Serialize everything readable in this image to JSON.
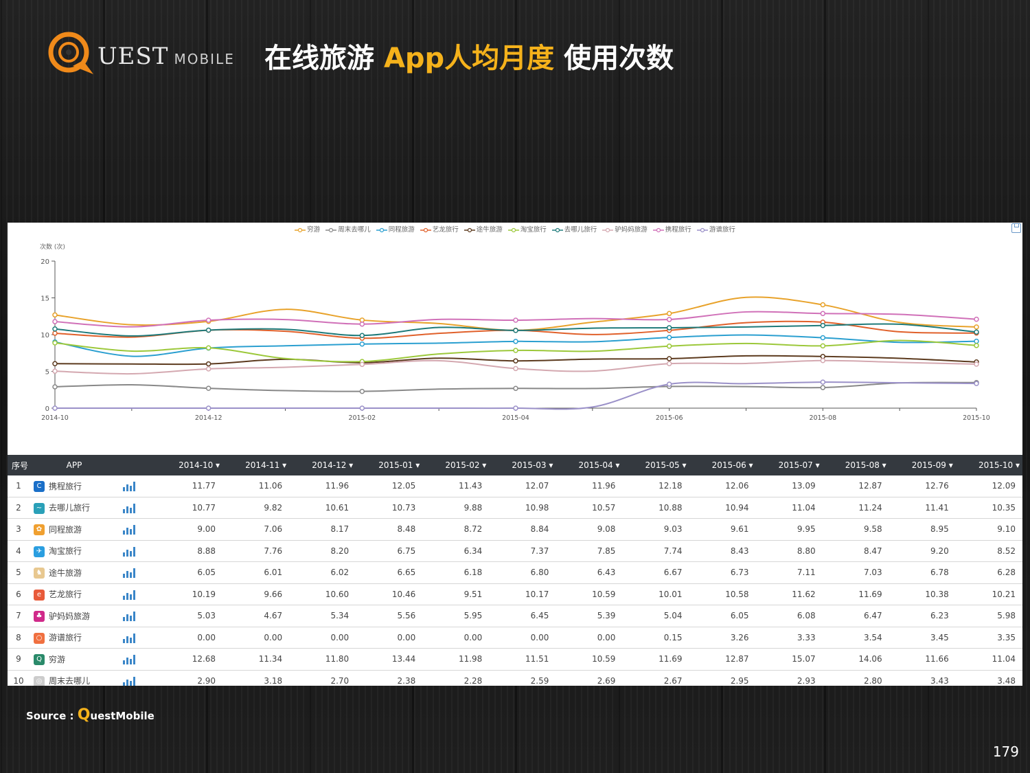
{
  "logo": {
    "text_main": "UEST",
    "text_sub": "MOBILE"
  },
  "title": {
    "part1": "在线旅游 ",
    "highlight": "App人均月度",
    "part2": " 使用次数"
  },
  "chart_data": {
    "type": "line",
    "ylabel": "次数 (次)",
    "ylim": [
      0,
      20
    ],
    "yticks": [
      0,
      5,
      10,
      15,
      20
    ],
    "x": [
      "2014-10",
      "2014-11",
      "2014-12",
      "2015-01",
      "2015-02",
      "2015-03",
      "2015-04",
      "2015-05",
      "2015-06",
      "2015-07",
      "2015-08",
      "2015-09",
      "2015-10"
    ],
    "xtick_labels": [
      "2014-10",
      "2014-12",
      "2015-02",
      "2015-04",
      "2015-06",
      "2015-08",
      "2015-10"
    ],
    "grid": false,
    "legend_position": "top",
    "series": [
      {
        "name": "穷游",
        "color": "#e8a22a",
        "values": [
          12.68,
          11.34,
          11.8,
          13.44,
          11.98,
          11.51,
          10.59,
          11.69,
          12.87,
          15.07,
          14.06,
          11.66,
          11.04
        ]
      },
      {
        "name": "周末去哪儿",
        "color": "#888888",
        "values": [
          2.9,
          3.18,
          2.7,
          2.38,
          2.28,
          2.59,
          2.69,
          2.67,
          2.95,
          2.93,
          2.8,
          3.43,
          3.48
        ]
      },
      {
        "name": "同程旅游",
        "color": "#2a9fd0",
        "values": [
          9.0,
          7.06,
          8.17,
          8.48,
          8.72,
          8.84,
          9.08,
          9.03,
          9.61,
          9.95,
          9.58,
          8.95,
          9.1
        ]
      },
      {
        "name": "艺龙旅行",
        "color": "#e0602a",
        "values": [
          10.19,
          9.66,
          10.6,
          10.46,
          9.51,
          10.17,
          10.59,
          10.01,
          10.58,
          11.62,
          11.69,
          10.38,
          10.21
        ]
      },
      {
        "name": "途牛旅游",
        "color": "#5c3a1e",
        "values": [
          6.05,
          6.01,
          6.02,
          6.65,
          6.18,
          6.8,
          6.43,
          6.67,
          6.73,
          7.11,
          7.03,
          6.78,
          6.28
        ]
      },
      {
        "name": "淘宝旅行",
        "color": "#9cc83a",
        "values": [
          8.88,
          7.76,
          8.2,
          6.75,
          6.34,
          7.37,
          7.85,
          7.74,
          8.43,
          8.8,
          8.47,
          9.2,
          8.52
        ]
      },
      {
        "name": "去哪儿旅行",
        "color": "#1e7a7a",
        "values": [
          10.77,
          9.82,
          10.61,
          10.73,
          9.88,
          10.98,
          10.57,
          10.88,
          10.94,
          11.04,
          11.24,
          11.41,
          10.35
        ]
      },
      {
        "name": "驴妈妈旅游",
        "color": "#d4a8b0",
        "values": [
          5.03,
          4.67,
          5.34,
          5.56,
          5.95,
          6.45,
          5.39,
          5.04,
          6.05,
          6.08,
          6.47,
          6.23,
          5.98
        ]
      },
      {
        "name": "携程旅行",
        "color": "#d070b8",
        "values": [
          11.77,
          11.06,
          11.96,
          12.05,
          11.43,
          12.07,
          11.96,
          12.18,
          12.06,
          13.09,
          12.87,
          12.76,
          12.09
        ]
      },
      {
        "name": "游谱旅行",
        "color": "#9a90c8",
        "values": [
          0.0,
          0.0,
          0.0,
          0.0,
          0.0,
          0.0,
          0.0,
          0.15,
          3.26,
          3.33,
          3.54,
          3.45,
          3.35
        ]
      }
    ]
  },
  "table": {
    "headers": {
      "idx": "序号",
      "app": "APP",
      "months": [
        "2014-10 ▾",
        "2014-11 ▾",
        "2014-12 ▾",
        "2015-01 ▾",
        "2015-02 ▾",
        "2015-03 ▾",
        "2015-04 ▾",
        "2015-05 ▾",
        "2015-06 ▾",
        "2015-07 ▾",
        "2015-08 ▾",
        "2015-09 ▾",
        "2015-10 ▾"
      ]
    },
    "rows": [
      {
        "idx": "1",
        "app": "携程旅行",
        "icon_color": "#1a6fc8",
        "icon": "C",
        "values": [
          "11.77",
          "11.06",
          "11.96",
          "12.05",
          "11.43",
          "12.07",
          "11.96",
          "12.18",
          "12.06",
          "13.09",
          "12.87",
          "12.76",
          "12.09"
        ]
      },
      {
        "idx": "2",
        "app": "去哪儿旅行",
        "icon_color": "#2aa0b8",
        "icon": "~",
        "values": [
          "10.77",
          "9.82",
          "10.61",
          "10.73",
          "9.88",
          "10.98",
          "10.57",
          "10.88",
          "10.94",
          "11.04",
          "11.24",
          "11.41",
          "10.35"
        ]
      },
      {
        "idx": "3",
        "app": "同程旅游",
        "icon_color": "#f0a030",
        "icon": "✿",
        "values": [
          "9.00",
          "7.06",
          "8.17",
          "8.48",
          "8.72",
          "8.84",
          "9.08",
          "9.03",
          "9.61",
          "9.95",
          "9.58",
          "8.95",
          "9.10"
        ]
      },
      {
        "idx": "4",
        "app": "淘宝旅行",
        "icon_color": "#2a9ee0",
        "icon": "✈",
        "values": [
          "8.88",
          "7.76",
          "8.20",
          "6.75",
          "6.34",
          "7.37",
          "7.85",
          "7.74",
          "8.43",
          "8.80",
          "8.47",
          "9.20",
          "8.52"
        ]
      },
      {
        "idx": "5",
        "app": "途牛旅游",
        "icon_color": "#e8c890",
        "icon": "♞",
        "values": [
          "6.05",
          "6.01",
          "6.02",
          "6.65",
          "6.18",
          "6.80",
          "6.43",
          "6.67",
          "6.73",
          "7.11",
          "7.03",
          "6.78",
          "6.28"
        ]
      },
      {
        "idx": "6",
        "app": "艺龙旅行",
        "icon_color": "#e85a3a",
        "icon": "e",
        "values": [
          "10.19",
          "9.66",
          "10.60",
          "10.46",
          "9.51",
          "10.17",
          "10.59",
          "10.01",
          "10.58",
          "11.62",
          "11.69",
          "10.38",
          "10.21"
        ]
      },
      {
        "idx": "7",
        "app": "驴妈妈旅游",
        "icon_color": "#d02a8a",
        "icon": "♣",
        "values": [
          "5.03",
          "4.67",
          "5.34",
          "5.56",
          "5.95",
          "6.45",
          "5.39",
          "5.04",
          "6.05",
          "6.08",
          "6.47",
          "6.23",
          "5.98"
        ]
      },
      {
        "idx": "8",
        "app": "游谱旅行",
        "icon_color": "#f07040",
        "icon": "○",
        "values": [
          "0.00",
          "0.00",
          "0.00",
          "0.00",
          "0.00",
          "0.00",
          "0.00",
          "0.15",
          "3.26",
          "3.33",
          "3.54",
          "3.45",
          "3.35"
        ]
      },
      {
        "idx": "9",
        "app": "穷游",
        "icon_color": "#2a8a6a",
        "icon": "Q",
        "values": [
          "12.68",
          "11.34",
          "11.80",
          "13.44",
          "11.98",
          "11.51",
          "10.59",
          "11.69",
          "12.87",
          "15.07",
          "14.06",
          "11.66",
          "11.04"
        ]
      },
      {
        "idx": "10",
        "app": "周末去哪儿",
        "icon_color": "#cccccc",
        "icon": "◎",
        "values": [
          "2.90",
          "3.18",
          "2.70",
          "2.38",
          "2.28",
          "2.59",
          "2.69",
          "2.67",
          "2.95",
          "2.93",
          "2.80",
          "3.43",
          "3.48"
        ]
      }
    ]
  },
  "footer": {
    "source_label": "Source : ",
    "source_q": "Q",
    "source_rest": "uestMobile",
    "page_number": "179"
  }
}
